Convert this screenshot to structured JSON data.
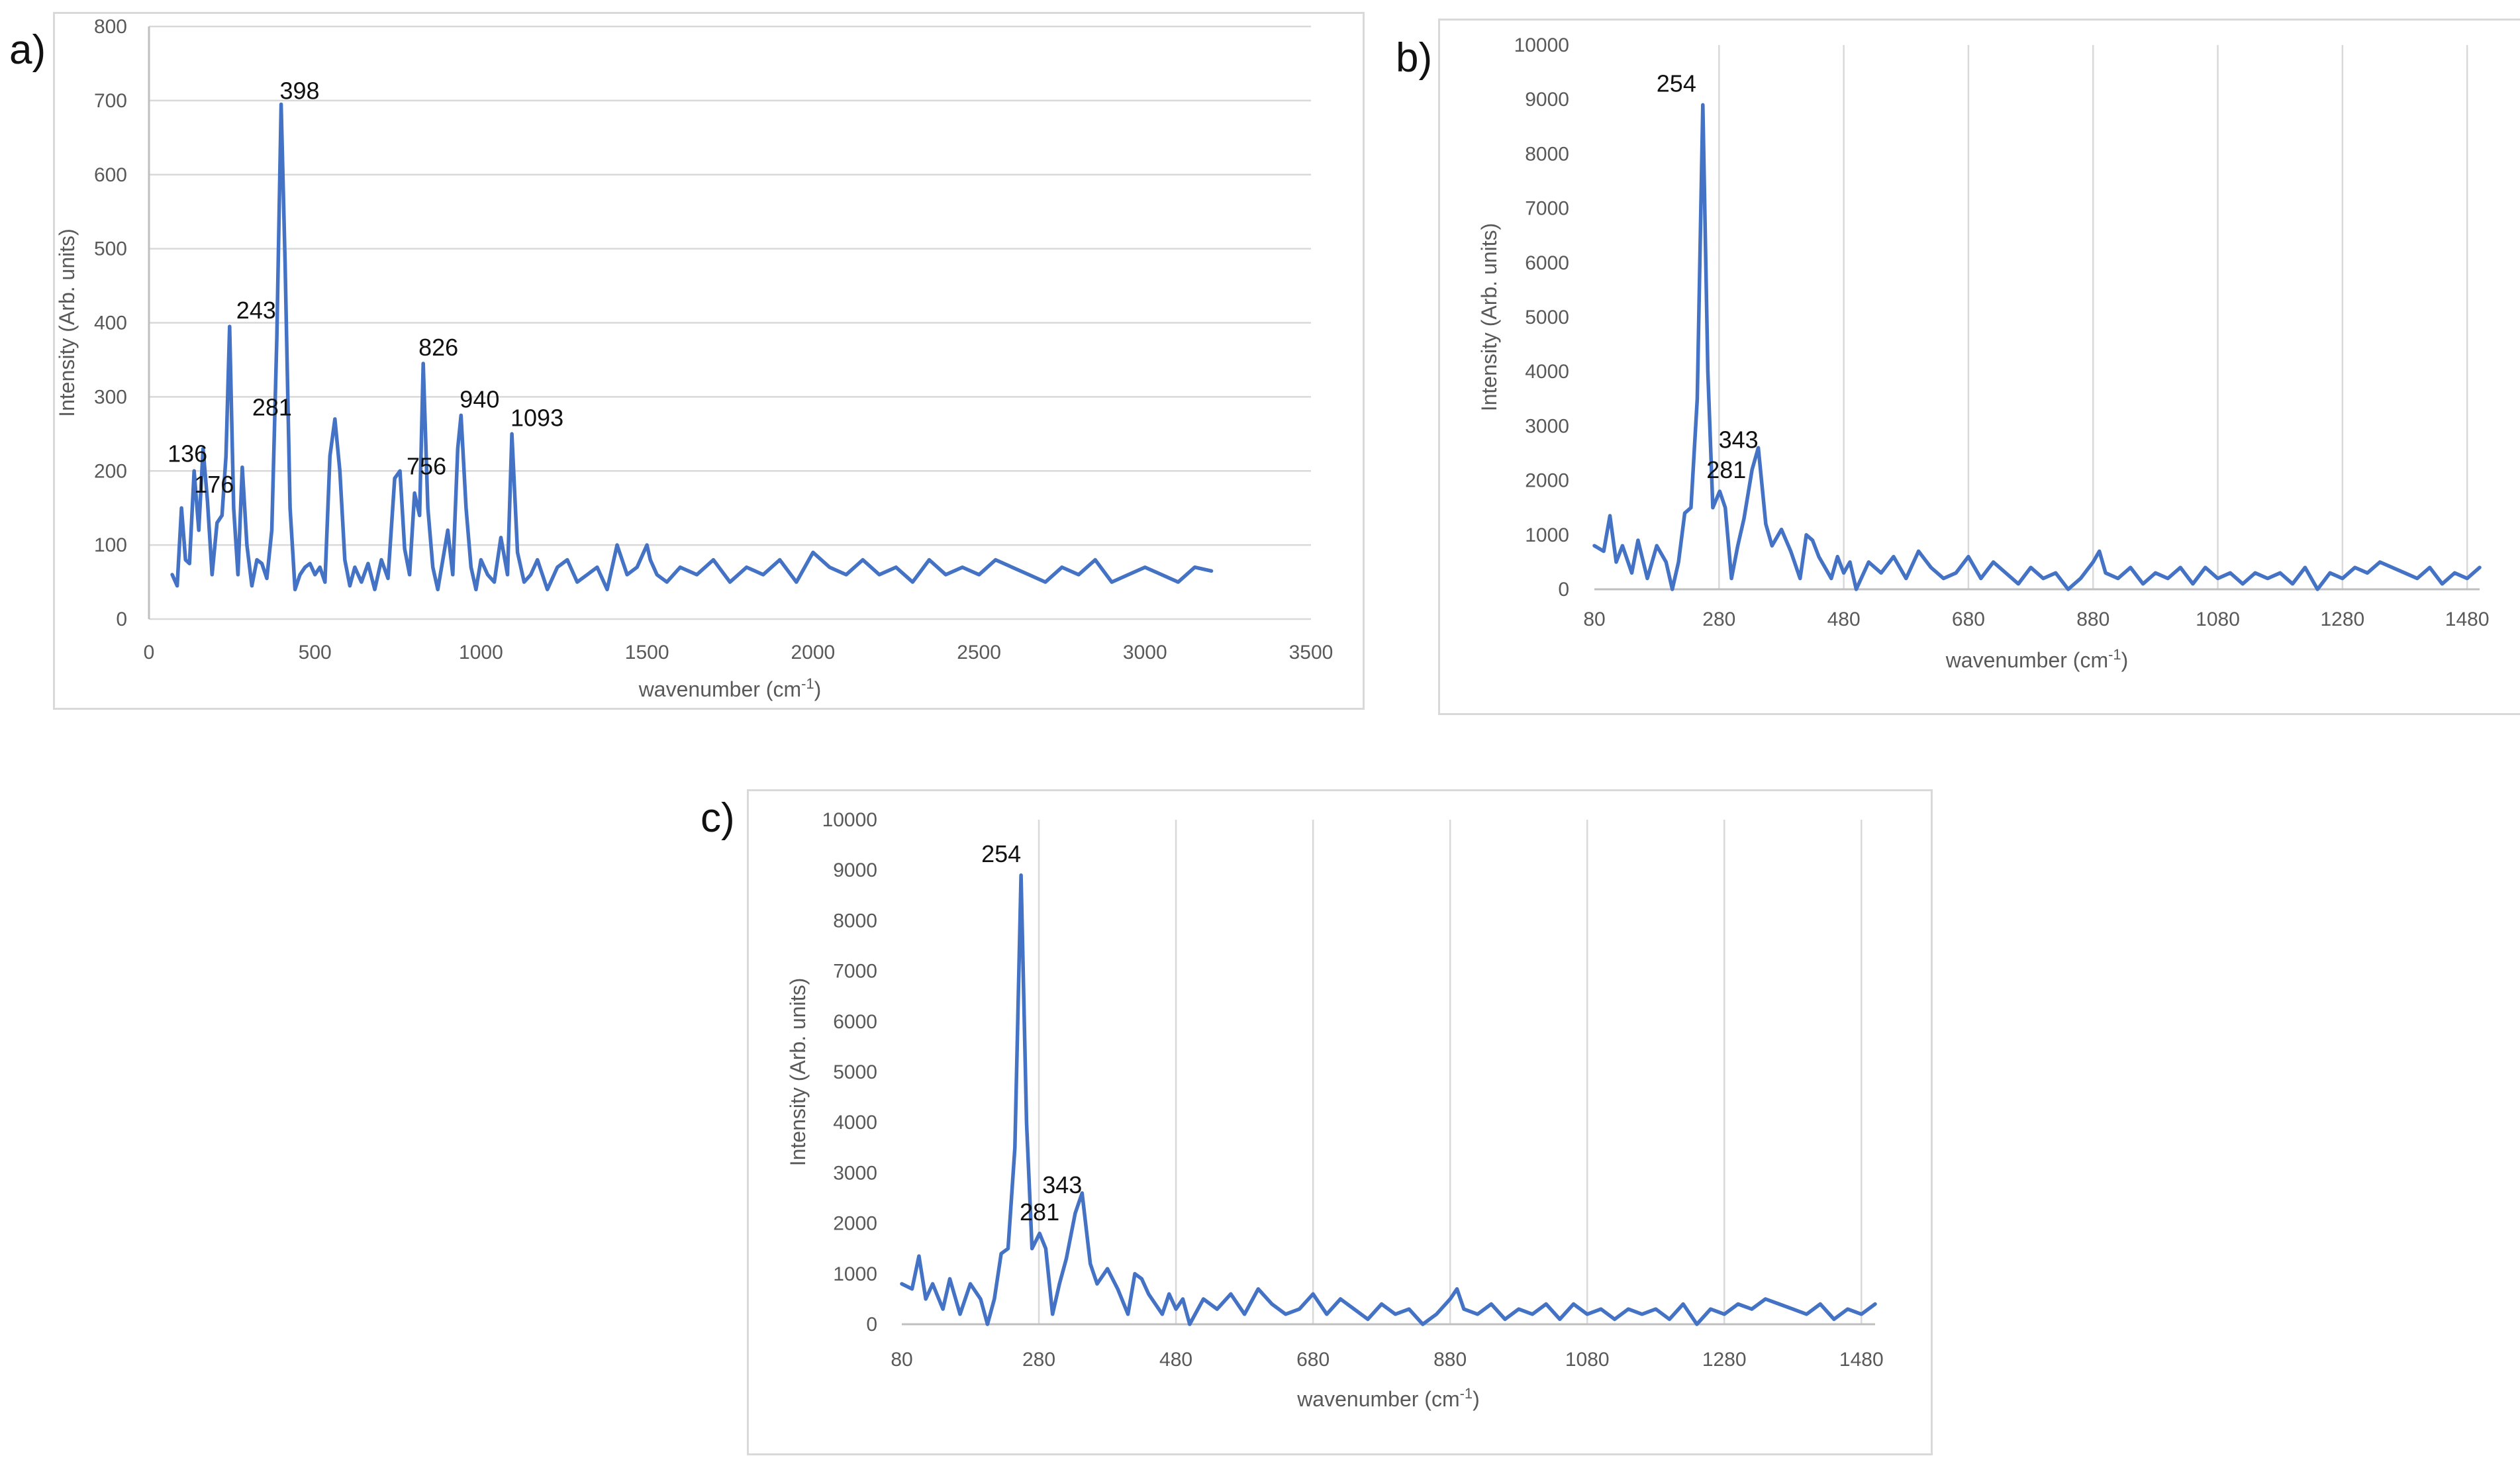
{
  "figure": {
    "panels": [
      "a)",
      "b)",
      "c)"
    ]
  },
  "colors": {
    "series": "#4472c4",
    "grid": "#d9d9d9",
    "axis": "#bfbfbf",
    "tick_text": "#595959"
  },
  "chart_data": [
    {
      "type": "line",
      "panel": "a)",
      "xlabel": "wavenumber (cm-1)",
      "xlabel_base": "wavenumber (cm",
      "xlabel_sup": "-1",
      "xlabel_tail": ")",
      "ylabel": "Intensity (Arb. units)",
      "xlim": [
        0,
        3500
      ],
      "ylim": [
        0,
        800
      ],
      "xticks": [
        0,
        500,
        1000,
        1500,
        2000,
        2500,
        3000,
        3500
      ],
      "yticks": [
        0,
        100,
        200,
        300,
        400,
        500,
        600,
        700,
        800
      ],
      "grid": "horizontal",
      "series": [
        {
          "x": [
            70,
            85,
            98,
            110,
            122,
            136,
            150,
            163,
            176,
            190,
            205,
            220,
            232,
            243,
            255,
            268,
            281,
            295,
            310,
            325,
            340,
            355,
            370,
            385,
            398,
            410,
            425,
            440,
            455,
            470,
            485,
            500,
            515,
            530,
            545,
            560,
            575,
            590,
            605,
            620,
            640,
            660,
            680,
            700,
            720,
            740,
            756,
            770,
            785,
            800,
            815,
            826,
            840,
            855,
            870,
            885,
            900,
            915,
            930,
            940,
            955,
            970,
            985,
            1000,
            1020,
            1040,
            1060,
            1080,
            1093,
            1110,
            1130,
            1150,
            1170,
            1200,
            1230,
            1260,
            1290,
            1320,
            1350,
            1380,
            1410,
            1440,
            1470,
            1490,
            1500,
            1510,
            1530,
            1560,
            1600,
            1650,
            1700,
            1750,
            1800,
            1850,
            1900,
            1950,
            2000,
            2050,
            2100,
            2150,
            2200,
            2250,
            2300,
            2350,
            2400,
            2450,
            2500,
            2550,
            2600,
            2650,
            2700,
            2750,
            2800,
            2850,
            2900,
            2950,
            3000,
            3050,
            3100,
            3150,
            3200
          ],
          "y": [
            60,
            45,
            150,
            80,
            75,
            200,
            120,
            230,
            160,
            60,
            130,
            140,
            220,
            395,
            150,
            60,
            205,
            100,
            45,
            80,
            75,
            55,
            120,
            380,
            695,
            480,
            150,
            40,
            60,
            70,
            75,
            60,
            70,
            50,
            220,
            270,
            200,
            80,
            45,
            70,
            50,
            75,
            40,
            80,
            55,
            190,
            200,
            95,
            60,
            170,
            140,
            345,
            150,
            70,
            40,
            80,
            120,
            60,
            230,
            275,
            150,
            70,
            40,
            80,
            60,
            50,
            110,
            60,
            250,
            90,
            50,
            60,
            80,
            40,
            70,
            80,
            50,
            60,
            70,
            40,
            100,
            60,
            70,
            90,
            100,
            80,
            60,
            50,
            70,
            60,
            80,
            50,
            70,
            60,
            80,
            50,
            90,
            70,
            60,
            80,
            60,
            70,
            50,
            80,
            60,
            70,
            60,
            80,
            70,
            60,
            50,
            70,
            60,
            80,
            50,
            60,
            70,
            60,
            50,
            70,
            65
          ],
          "marks": [
            {
              "x": 136,
              "label": "136"
            },
            {
              "x": 176,
              "label": "176"
            },
            {
              "x": 243,
              "label": "243"
            },
            {
              "x": 281,
              "label": "281"
            },
            {
              "x": 398,
              "label": "398"
            },
            {
              "x": 756,
              "label": "756"
            },
            {
              "x": 826,
              "label": "826"
            },
            {
              "x": 940,
              "label": "940"
            },
            {
              "x": 1093,
              "label": "1093"
            }
          ]
        }
      ]
    },
    {
      "type": "line",
      "panel": "b)",
      "xlabel": "wavenumber (cm-1)",
      "xlabel_base": "wavenumber (cm",
      "xlabel_sup": "-1",
      "xlabel_tail": ")",
      "ylabel": "Intensity (Arb. units)",
      "xlim": [
        80,
        1500
      ],
      "ylim": [
        0,
        10000
      ],
      "xticks": [
        80,
        280,
        480,
        680,
        880,
        1080,
        1280,
        1480
      ],
      "yticks": [
        0,
        1000,
        2000,
        3000,
        4000,
        5000,
        6000,
        7000,
        8000,
        9000,
        10000
      ],
      "grid": "vertical",
      "series": [
        {
          "x": [
            80,
            95,
            105,
            115,
            125,
            140,
            150,
            165,
            180,
            195,
            205,
            215,
            225,
            235,
            245,
            254,
            262,
            270,
            281,
            290,
            300,
            310,
            320,
            333,
            343,
            355,
            365,
            380,
            395,
            410,
            420,
            430,
            440,
            450,
            460,
            470,
            480,
            490,
            500,
            520,
            540,
            560,
            580,
            600,
            620,
            640,
            660,
            680,
            700,
            720,
            740,
            760,
            780,
            800,
            820,
            840,
            860,
            880,
            890,
            900,
            920,
            940,
            960,
            980,
            1000,
            1020,
            1040,
            1060,
            1080,
            1100,
            1120,
            1140,
            1160,
            1180,
            1200,
            1220,
            1240,
            1260,
            1280,
            1300,
            1320,
            1340,
            1360,
            1380,
            1400,
            1420,
            1440,
            1460,
            1480,
            1500
          ],
          "x_marks": [],
          "y": [
            800,
            700,
            1350,
            500,
            800,
            300,
            900,
            200,
            800,
            500,
            0,
            500,
            1400,
            1500,
            3500,
            8900,
            4000,
            1500,
            1800,
            1500,
            200,
            800,
            1300,
            2200,
            2600,
            1200,
            800,
            1100,
            700,
            200,
            1000,
            900,
            600,
            400,
            200,
            600,
            300,
            500,
            0,
            500,
            300,
            600,
            200,
            700,
            400,
            200,
            300,
            600,
            200,
            500,
            300,
            100,
            400,
            200,
            300,
            0,
            200,
            500,
            700,
            300,
            200,
            400,
            100,
            300,
            200,
            400,
            100,
            400,
            200,
            300,
            100,
            300,
            200,
            300,
            100,
            400,
            0,
            300,
            200,
            400,
            300,
            500,
            400,
            300,
            200,
            400,
            100,
            300,
            200,
            400
          ],
          "marks": [
            {
              "x": 254,
              "label": "254"
            },
            {
              "x": 281,
              "label": "281"
            },
            {
              "x": 343,
              "label": "343"
            }
          ]
        }
      ]
    },
    {
      "type": "line",
      "panel": "c)",
      "xlabel": "wavenumber (cm-1)",
      "xlabel_base": "wavenumber (cm",
      "xlabel_sup": "-1",
      "xlabel_tail": ")",
      "ylabel": "Intensity (Arb. units)",
      "xlim": [
        80,
        1500
      ],
      "ylim": [
        0,
        10000
      ],
      "xticks": [
        80,
        280,
        480,
        680,
        880,
        1080,
        1280,
        1480
      ],
      "yticks": [
        0,
        1000,
        2000,
        3000,
        4000,
        5000,
        6000,
        7000,
        8000,
        9000,
        10000
      ],
      "grid": "vertical",
      "series": [
        {
          "x": [
            80,
            95,
            105,
            115,
            125,
            140,
            150,
            165,
            180,
            195,
            205,
            215,
            225,
            235,
            245,
            254,
            262,
            270,
            281,
            290,
            300,
            310,
            320,
            333,
            343,
            355,
            365,
            380,
            395,
            410,
            420,
            430,
            440,
            450,
            460,
            470,
            480,
            490,
            500,
            520,
            540,
            560,
            580,
            600,
            620,
            640,
            660,
            680,
            700,
            720,
            740,
            760,
            780,
            800,
            820,
            840,
            860,
            880,
            890,
            900,
            920,
            940,
            960,
            980,
            1000,
            1020,
            1040,
            1060,
            1080,
            1100,
            1120,
            1140,
            1160,
            1180,
            1200,
            1220,
            1240,
            1260,
            1280,
            1300,
            1320,
            1340,
            1360,
            1380,
            1400,
            1420,
            1440,
            1460,
            1480,
            1500
          ],
          "y": [
            800,
            700,
            1350,
            500,
            800,
            300,
            900,
            200,
            800,
            500,
            0,
            500,
            1400,
            1500,
            3500,
            8900,
            4000,
            1500,
            1800,
            1500,
            200,
            800,
            1300,
            2200,
            2600,
            1200,
            800,
            1100,
            700,
            200,
            1000,
            900,
            600,
            400,
            200,
            600,
            300,
            500,
            0,
            500,
            300,
            600,
            200,
            700,
            400,
            200,
            300,
            600,
            200,
            500,
            300,
            100,
            400,
            200,
            300,
            0,
            200,
            500,
            700,
            300,
            200,
            400,
            100,
            300,
            200,
            400,
            100,
            400,
            200,
            300,
            100,
            300,
            200,
            300,
            100,
            400,
            0,
            300,
            200,
            400,
            300,
            500,
            400,
            300,
            200,
            400,
            100,
            300,
            200,
            400
          ],
          "marks": [
            {
              "x": 254,
              "label": "254"
            },
            {
              "x": 281,
              "label": "281"
            },
            {
              "x": 343,
              "label": "343"
            }
          ]
        }
      ]
    }
  ]
}
